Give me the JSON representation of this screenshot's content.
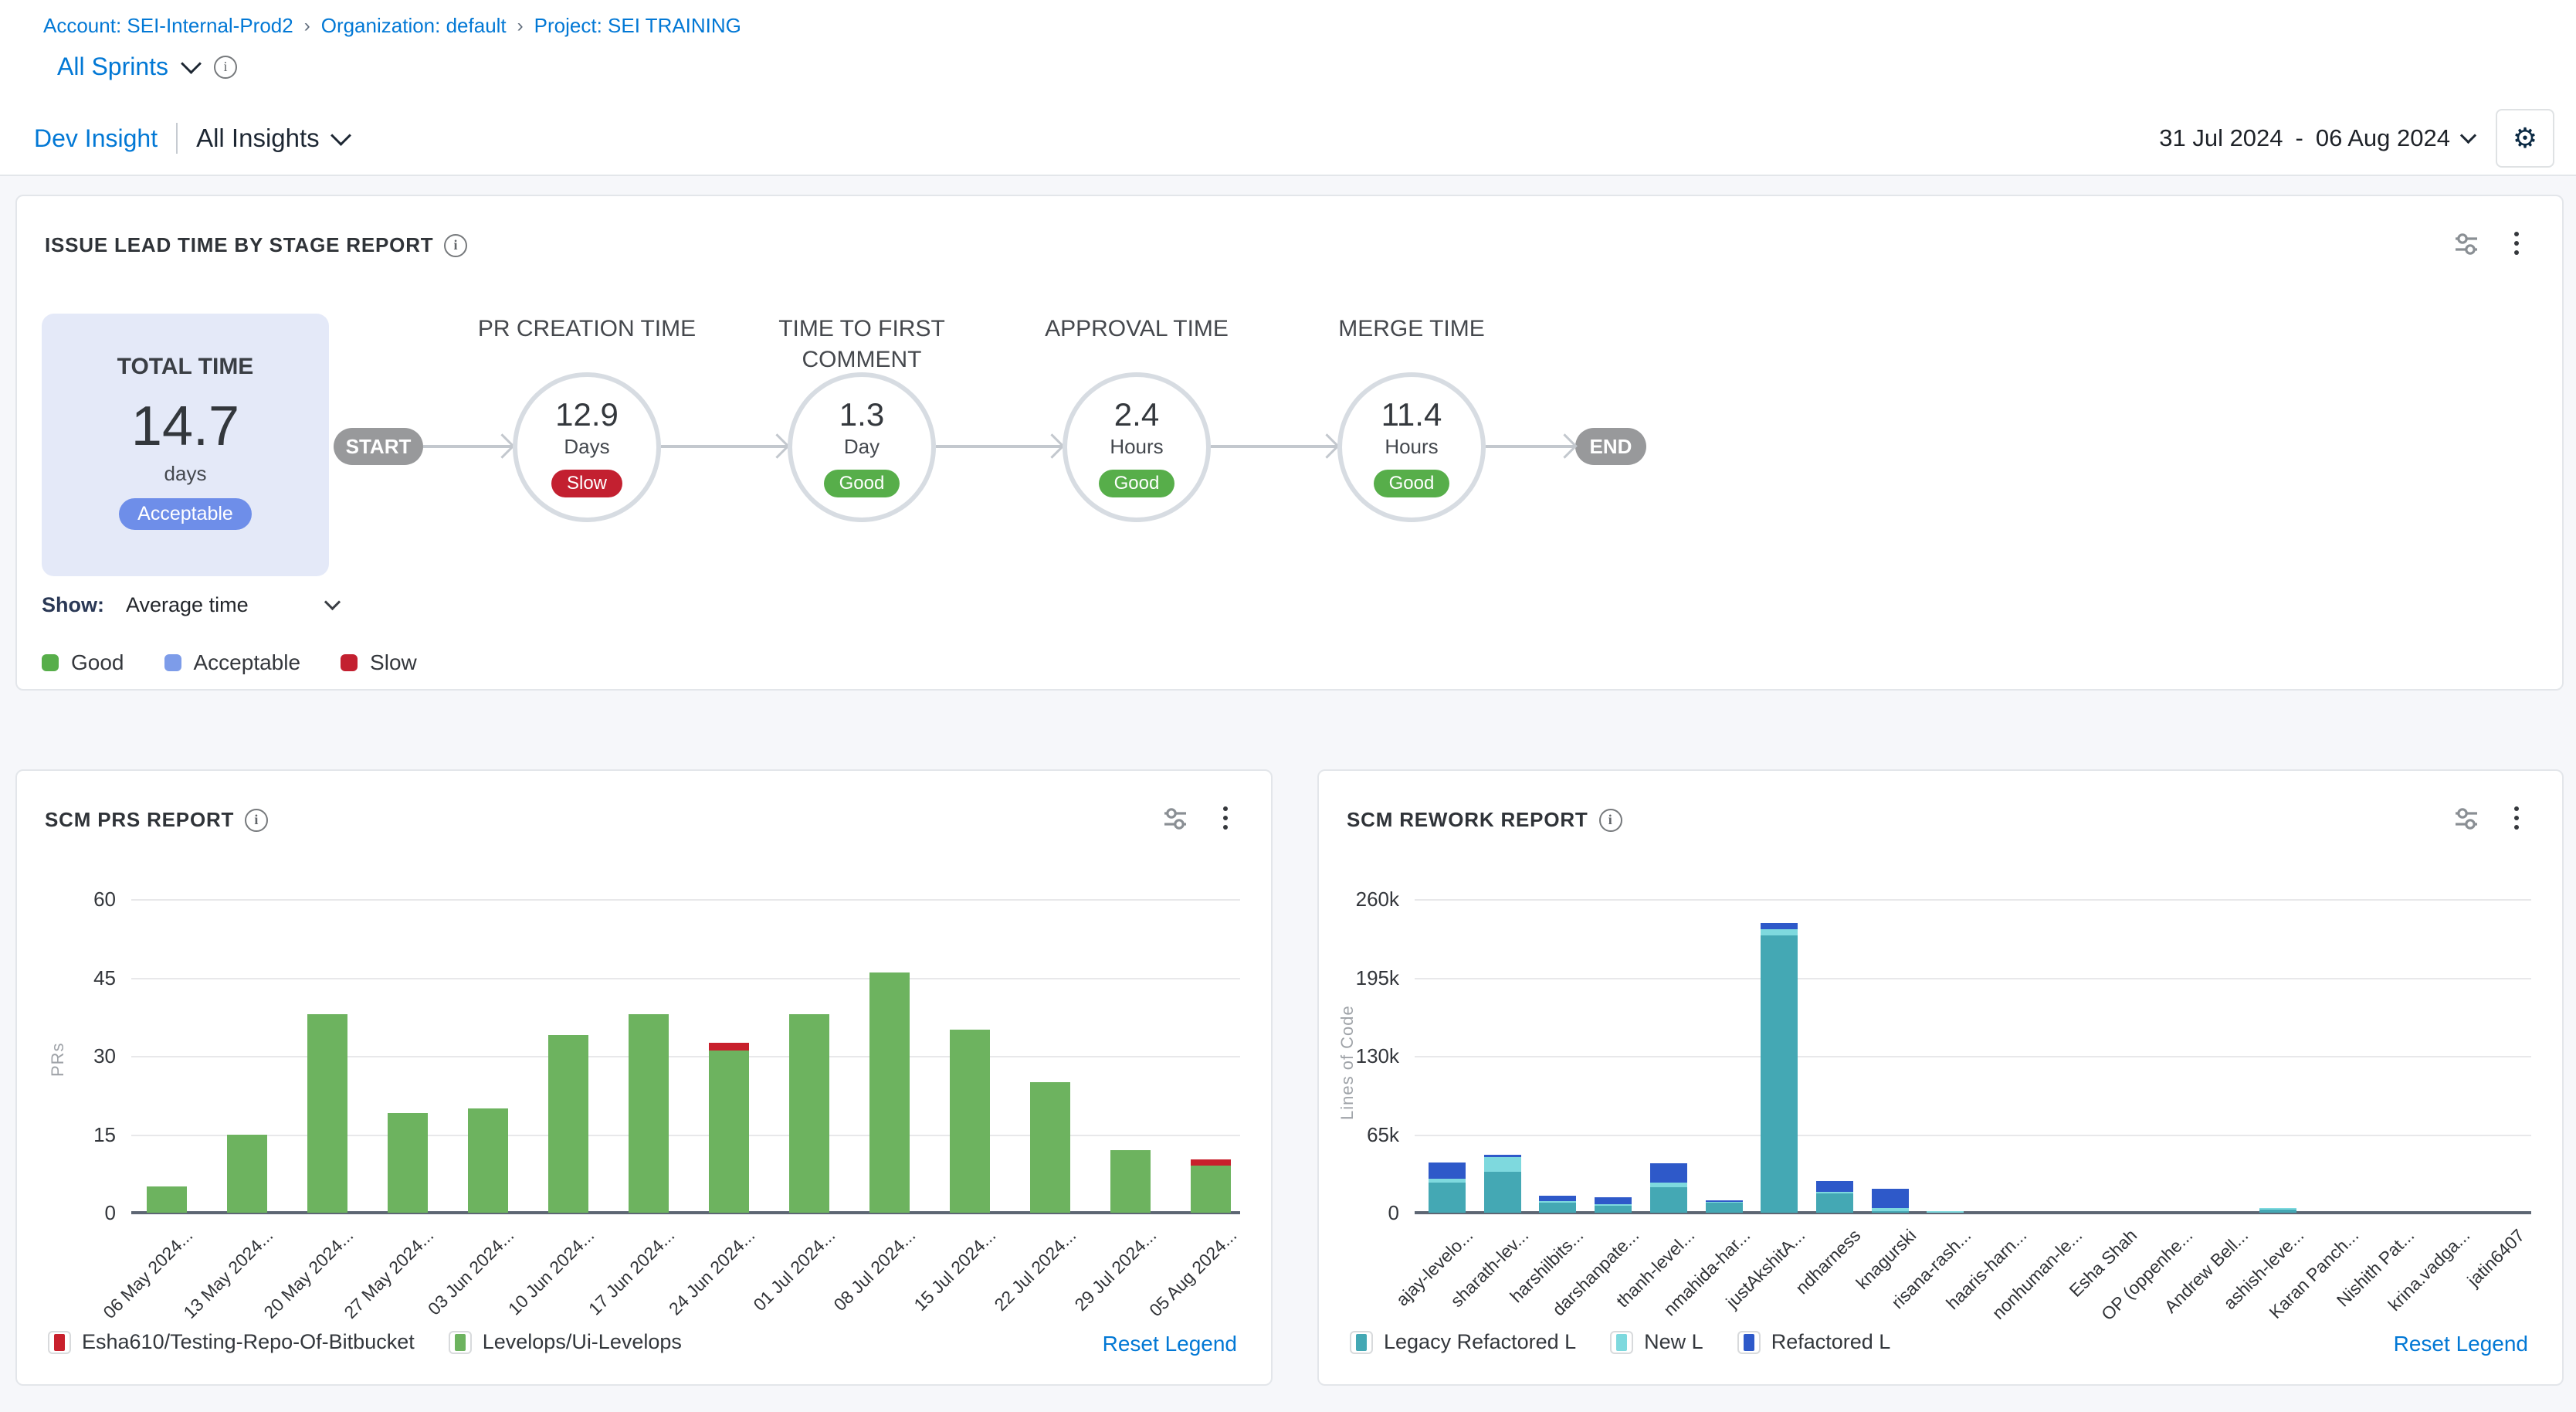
{
  "colors": {
    "link_blue": "#0278d5",
    "good_green": "#57ae4a",
    "acceptable_blue": "#7d9ce9",
    "slow_red": "#c32030",
    "total_card_bg": "#e4e9f8",
    "total_card_badge": "#6e8ee9",
    "terminal_pill_gray": "#98999b",
    "bar_green": "#6db35f",
    "bar_red": "#c8202c",
    "legacy_teal": "#44a8b4",
    "new_cyan": "#7ed9de",
    "refactored_blue": "#2e59c9"
  },
  "topbar": {
    "breadcrumb": {
      "separator": "›",
      "items": [
        "Account: SEI-Internal-Prod2",
        "Organization: default",
        "Project: SEI TRAINING"
      ]
    },
    "sprint_selector": "All Sprints",
    "sprint_icons": [
      "chevron-down-icon",
      "info-icon"
    ]
  },
  "insights_bar": {
    "title": "Dev Insight",
    "selector": "All Insights",
    "date_range": {
      "start": "31 Jul 2024",
      "separator": "-",
      "end": "06 Aug 2024"
    },
    "settings_icon": "gear-icon"
  },
  "lead_time_panel": {
    "title": "ISSUE LEAD TIME BY STAGE REPORT",
    "header_icons": [
      "info-icon",
      "filter-sliders-icon",
      "kebab-menu-icon"
    ],
    "total_card": {
      "label": "TOTAL TIME",
      "value": "14.7",
      "unit": "days",
      "rating": "Acceptable",
      "rating_color": "#6e8ee9",
      "bg": "#e4e9f8"
    },
    "flow": {
      "start": "START",
      "end": "END",
      "stages": [
        {
          "name": "PR CREATION TIME",
          "name_lines": [
            "PR CREATION TIME"
          ],
          "value": "12.9",
          "unit": "Days",
          "rating": "Slow",
          "color": "#c32030"
        },
        {
          "name": "TIME TO FIRST COMMENT",
          "name_lines": [
            "TIME TO FIRST",
            "COMMENT"
          ],
          "value": "1.3",
          "unit": "Day",
          "rating": "Good",
          "color": "#57ae4a"
        },
        {
          "name": "APPROVAL TIME",
          "name_lines": [
            "APPROVAL TIME"
          ],
          "value": "2.4",
          "unit": "Hours",
          "rating": "Good",
          "color": "#57ae4a"
        },
        {
          "name": "MERGE TIME",
          "name_lines": [
            "MERGE TIME"
          ],
          "value": "11.4",
          "unit": "Hours",
          "rating": "Good",
          "color": "#57ae4a"
        }
      ]
    },
    "show_control": {
      "label": "Show:",
      "value": "Average time"
    },
    "legend": [
      {
        "label": "Good",
        "color": "#57ae4a"
      },
      {
        "label": "Acceptable",
        "color": "#7d9ce9"
      },
      {
        "label": "Slow",
        "color": "#c32030"
      }
    ]
  },
  "chart_data": [
    {
      "type": "bar",
      "stacked": true,
      "title": "SCM PRS REPORT",
      "ylabel": "PRs",
      "ylim": [
        0,
        60
      ],
      "yticks": [
        {
          "v": 0,
          "label": "0"
        },
        {
          "v": 15,
          "label": "15"
        },
        {
          "v": 30,
          "label": "30"
        },
        {
          "v": 45,
          "label": "45"
        },
        {
          "v": 60,
          "label": "60"
        }
      ],
      "grid": true,
      "xlabel_rotation": -45,
      "categories": [
        "06 May 2024...",
        "13 May 2024...",
        "20 May 2024...",
        "27 May 2024...",
        "03 Jun 2024...",
        "10 Jun 2024...",
        "17 Jun 2024...",
        "24 Jun 2024...",
        "01 Jul 2024...",
        "08 Jul 2024...",
        "15 Jul 2024...",
        "22 Jul 2024...",
        "29 Jul 2024...",
        "05 Aug 2024..."
      ],
      "series": [
        {
          "name": "Levelops/Ui-Levelops",
          "color": "#6db35f",
          "values": [
            5,
            15,
            38,
            19,
            20,
            34,
            38,
            31,
            38,
            46,
            35,
            25,
            12,
            9
          ]
        },
        {
          "name": "Esha610/Testing-Repo-Of-Bitbucket",
          "color": "#c8202c",
          "values": [
            0,
            0,
            0,
            0,
            0,
            0,
            0,
            1.5,
            0,
            0,
            0,
            0,
            0,
            1.2
          ]
        }
      ],
      "legend": [
        {
          "label": "Esha610/Testing-Repo-Of-Bitbucket",
          "color": "#c8202c"
        },
        {
          "label": "Levelops/Ui-Levelops",
          "color": "#6db35f"
        }
      ],
      "legend_position": "bottom",
      "reset_label": "Reset Legend"
    },
    {
      "type": "bar",
      "stacked": true,
      "title": "SCM REWORK REPORT",
      "ylabel": "Lines of Code",
      "ylim": [
        0,
        260000
      ],
      "yticks": [
        {
          "v": 0,
          "label": "0"
        },
        {
          "v": 65000,
          "label": "65k"
        },
        {
          "v": 130000,
          "label": "130k"
        },
        {
          "v": 195000,
          "label": "195k"
        },
        {
          "v": 260000,
          "label": "260k"
        }
      ],
      "grid": true,
      "xlabel_rotation": -45,
      "categories": [
        "ajay-levelo...",
        "sharath-lev...",
        "harshilbits...",
        "darshanpate...",
        "thanh-level...",
        "nmahida-har...",
        "justAkshitA...",
        "ndharness",
        "knagurski",
        "risana-rash...",
        "haaris-harn...",
        "nonhuman-le...",
        "Esha Shah",
        "OP (oppenhe...",
        "Andrew Bell...",
        "ashish-leve...",
        "Karan Panch...",
        "Nishith Pat...",
        "krina.vadga...",
        "jatin6407"
      ],
      "series": [
        {
          "name": "Legacy Refactored L",
          "color": "#44a8b4",
          "values": [
            25000,
            34000,
            8000,
            6000,
            21000,
            8000,
            230000,
            16000,
            1000,
            0,
            0,
            0,
            0,
            0,
            0,
            2500,
            0,
            0,
            0,
            0
          ]
        },
        {
          "name": "New L",
          "color": "#7ed9de",
          "values": [
            3000,
            12000,
            1500,
            500,
            4000,
            500,
            5000,
            500,
            3000,
            1000,
            0,
            0,
            0,
            0,
            0,
            500,
            0,
            0,
            0,
            0
          ]
        },
        {
          "name": "Refactored L",
          "color": "#2e59c9",
          "values": [
            13500,
            2000,
            4500,
            6000,
            16000,
            1000,
            5000,
            9000,
            16000,
            0,
            0,
            0,
            0,
            0,
            0,
            0,
            0,
            0,
            0,
            0
          ]
        }
      ],
      "legend": [
        {
          "label": "Legacy Refactored L",
          "color": "#44a8b4"
        },
        {
          "label": "New L",
          "color": "#7ed9de"
        },
        {
          "label": "Refactored L",
          "color": "#2e59c9"
        }
      ],
      "legend_position": "bottom",
      "reset_label": "Reset Legend"
    }
  ]
}
